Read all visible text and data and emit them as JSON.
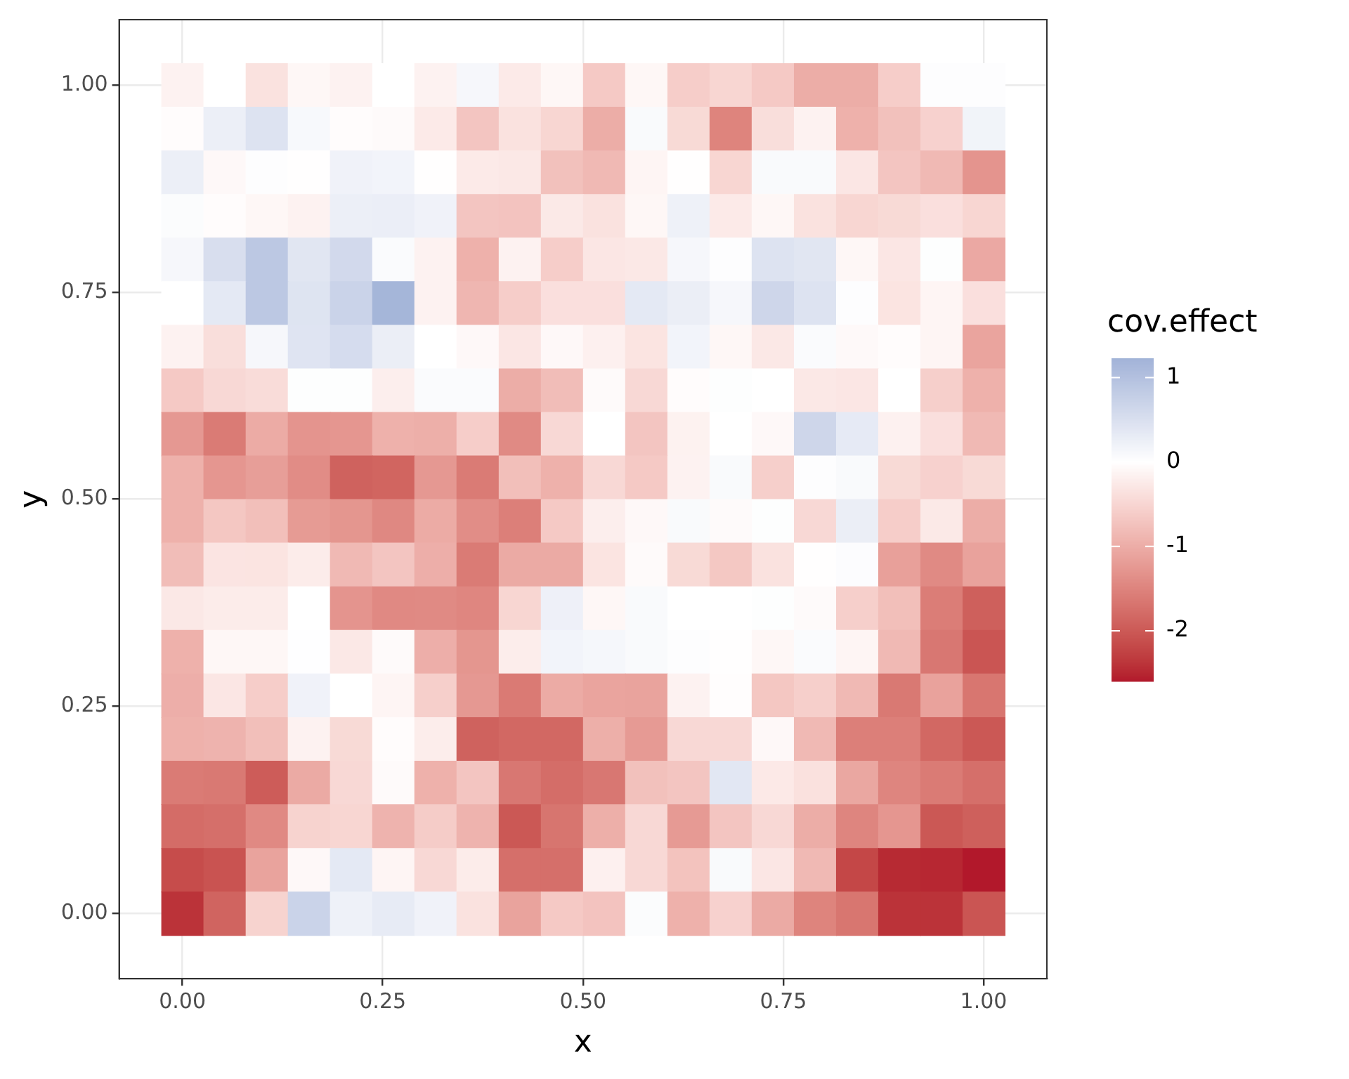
{
  "chart_data": {
    "type": "heatmap",
    "xlabel": "x",
    "ylabel": "y",
    "legend_title": "cov.effect",
    "x": [
      0,
      0.0526,
      0.1053,
      0.1579,
      0.2105,
      0.2632,
      0.3158,
      0.3684,
      0.4211,
      0.4737,
      0.5263,
      0.5789,
      0.6316,
      0.6842,
      0.7368,
      0.7895,
      0.8421,
      0.8947,
      0.9474,
      1
    ],
    "y": [
      1,
      0.9474,
      0.8947,
      0.8421,
      0.7895,
      0.7368,
      0.6842,
      0.6316,
      0.5789,
      0.5263,
      0.4737,
      0.4211,
      0.3684,
      0.3158,
      0.2632,
      0.2105,
      0.1579,
      0.1053,
      0.0526,
      0
    ],
    "cells": [
      [
        -0.15,
        0,
        -0.35,
        -0.1,
        -0.15,
        0,
        -0.15,
        0.12,
        -0.25,
        -0.1,
        -0.65,
        -0.1,
        -0.6,
        -0.5,
        -0.65,
        -1.0,
        -1.0,
        -0.6,
        0.03,
        0.03
      ],
      [
        -0.03,
        0.25,
        0.45,
        0.1,
        -0.03,
        -0.06,
        -0.25,
        -0.7,
        -0.35,
        -0.5,
        -1.0,
        0.08,
        -0.45,
        -1.5,
        -0.4,
        -0.15,
        -0.95,
        -0.75,
        -0.55,
        0.18
      ],
      [
        0.25,
        -0.08,
        0.03,
        -0.01,
        0.2,
        0.17,
        -0.01,
        -0.25,
        -0.28,
        -0.75,
        -0.85,
        -0.12,
        -0.01,
        -0.5,
        0.08,
        0.08,
        -0.3,
        -0.7,
        -0.85,
        -1.3
      ],
      [
        0.05,
        -0.03,
        -0.1,
        -0.15,
        0.25,
        0.26,
        0.2,
        -0.7,
        -0.72,
        -0.27,
        -0.35,
        -0.1,
        0.22,
        -0.25,
        -0.1,
        -0.35,
        -0.5,
        -0.45,
        -0.38,
        -0.5
      ],
      [
        0.12,
        0.52,
        0.88,
        0.4,
        0.6,
        0.07,
        -0.15,
        -0.95,
        -0.15,
        -0.6,
        -0.3,
        -0.28,
        0.12,
        0.03,
        0.45,
        0.4,
        -0.1,
        -0.3,
        0.02,
        -1.05
      ],
      [
        0,
        0.35,
        0.88,
        0.43,
        0.7,
        1.18,
        -0.15,
        -0.88,
        -0.6,
        -0.38,
        -0.38,
        0.35,
        0.27,
        0.12,
        0.65,
        0.45,
        0.03,
        -0.33,
        -0.12,
        -0.38
      ],
      [
        -0.15,
        -0.4,
        0.12,
        0.42,
        0.55,
        0.27,
        0,
        -0.08,
        -0.3,
        -0.08,
        -0.18,
        -0.33,
        0.17,
        -0.1,
        -0.28,
        0.07,
        -0.07,
        -0.03,
        -0.12,
        -1.1
      ],
      [
        -0.65,
        -0.47,
        -0.42,
        0.02,
        0.02,
        -0.2,
        0.06,
        0.06,
        -1.0,
        -0.8,
        -0.06,
        -0.47,
        -0.03,
        0.02,
        0,
        -0.28,
        -0.3,
        0,
        -0.58,
        -0.95
      ],
      [
        -1.25,
        -1.6,
        -1.02,
        -1.3,
        -1.27,
        -0.95,
        -0.97,
        -0.6,
        -1.42,
        -0.47,
        0,
        -0.7,
        -0.16,
        0,
        -0.08,
        0.65,
        0.33,
        -0.17,
        -0.38,
        -0.85
      ],
      [
        -0.95,
        -1.27,
        -1.18,
        -1.4,
        -1.9,
        -1.87,
        -1.25,
        -1.6,
        -0.78,
        -0.95,
        -0.47,
        -0.65,
        -0.15,
        0.08,
        -0.58,
        0.03,
        0.08,
        -0.45,
        -0.55,
        -0.45
      ],
      [
        -0.95,
        -0.68,
        -0.77,
        -1.22,
        -1.28,
        -1.45,
        -1.02,
        -1.38,
        -1.55,
        -0.65,
        -0.2,
        -0.08,
        0.08,
        -0.06,
        0.02,
        -0.47,
        0.27,
        -0.6,
        -0.27,
        -1.0
      ],
      [
        -0.8,
        -0.32,
        -0.33,
        -0.23,
        -0.85,
        -0.7,
        -0.98,
        -1.6,
        -1.03,
        -1.03,
        -0.33,
        -0.06,
        -0.45,
        -0.67,
        -0.35,
        -0.01,
        0.04,
        -1.15,
        -1.42,
        -1.13
      ],
      [
        -0.28,
        -0.23,
        -0.23,
        0,
        -1.3,
        -1.43,
        -1.42,
        -1.47,
        -0.5,
        0.23,
        -0.1,
        0.08,
        0,
        0,
        0.02,
        -0.06,
        -0.58,
        -0.78,
        -1.58,
        -1.93
      ],
      [
        -0.95,
        -0.1,
        -0.1,
        0.01,
        -0.28,
        -0.06,
        -0.98,
        -1.28,
        -0.22,
        0.17,
        0.13,
        0.08,
        0.03,
        -0.01,
        -0.1,
        0.06,
        -0.12,
        -0.85,
        -1.65,
        -2.05
      ],
      [
        -0.98,
        -0.3,
        -0.6,
        0.2,
        0,
        -0.12,
        -0.58,
        -1.25,
        -1.62,
        -1.02,
        -1.1,
        -1.12,
        -0.15,
        -0.02,
        -0.68,
        -0.58,
        -0.85,
        -1.63,
        -1.13,
        -1.67
      ],
      [
        -0.95,
        -0.92,
        -0.77,
        -0.15,
        -0.45,
        -0.03,
        -0.22,
        -1.9,
        -1.83,
        -1.83,
        -0.97,
        -1.23,
        -0.47,
        -0.47,
        -0.08,
        -0.85,
        -1.55,
        -1.55,
        -1.83,
        -2.02
      ],
      [
        -1.6,
        -1.63,
        -1.97,
        -1.03,
        -0.47,
        -0.06,
        -0.95,
        -0.7,
        -1.65,
        -1.77,
        -1.65,
        -0.75,
        -0.7,
        0.38,
        -0.26,
        -0.36,
        -1.07,
        -1.48,
        -1.6,
        -1.75
      ],
      [
        -1.78,
        -1.75,
        -1.43,
        -0.53,
        -0.5,
        -0.92,
        -0.62,
        -0.92,
        -2.02,
        -1.68,
        -0.97,
        -0.47,
        -1.23,
        -0.7,
        -0.47,
        -1.0,
        -1.48,
        -1.27,
        -2.02,
        -1.93
      ],
      [
        -2.15,
        -2.07,
        -1.12,
        -0.08,
        0.35,
        -0.12,
        -0.47,
        -0.23,
        -1.75,
        -1.75,
        -0.18,
        -0.47,
        -0.73,
        0.08,
        -0.3,
        -0.85,
        -2.2,
        -2.48,
        -2.5,
        -2.6
      ],
      [
        -2.4,
        -1.88,
        -0.53,
        0.7,
        0.22,
        0.32,
        0.2,
        -0.35,
        -1.12,
        -0.65,
        -0.72,
        0.05,
        -0.95,
        -0.55,
        -1.03,
        -1.5,
        -1.67,
        -2.4,
        -2.4,
        -2.05
      ]
    ],
    "clim": [
      -2.6,
      1.23
    ],
    "cticks": [
      1,
      0,
      -1,
      -2
    ],
    "xlim": [
      -0.0789,
      1.0789
    ],
    "ylim": [
      -0.0789,
      1.0789
    ],
    "xticks": [
      {
        "value": 0,
        "label": "0.00"
      },
      {
        "value": 0.25,
        "label": "0.25"
      },
      {
        "value": 0.5,
        "label": "0.50"
      },
      {
        "value": 0.75,
        "label": "0.75"
      },
      {
        "value": 1,
        "label": "1.00"
      }
    ],
    "yticks": [
      {
        "value": 0,
        "label": "0.00"
      },
      {
        "value": 0.25,
        "label": "0.25"
      },
      {
        "value": 0.5,
        "label": "0.50"
      },
      {
        "value": 0.75,
        "label": "0.75"
      },
      {
        "value": 1,
        "label": "1.00"
      }
    ],
    "grid": true
  }
}
